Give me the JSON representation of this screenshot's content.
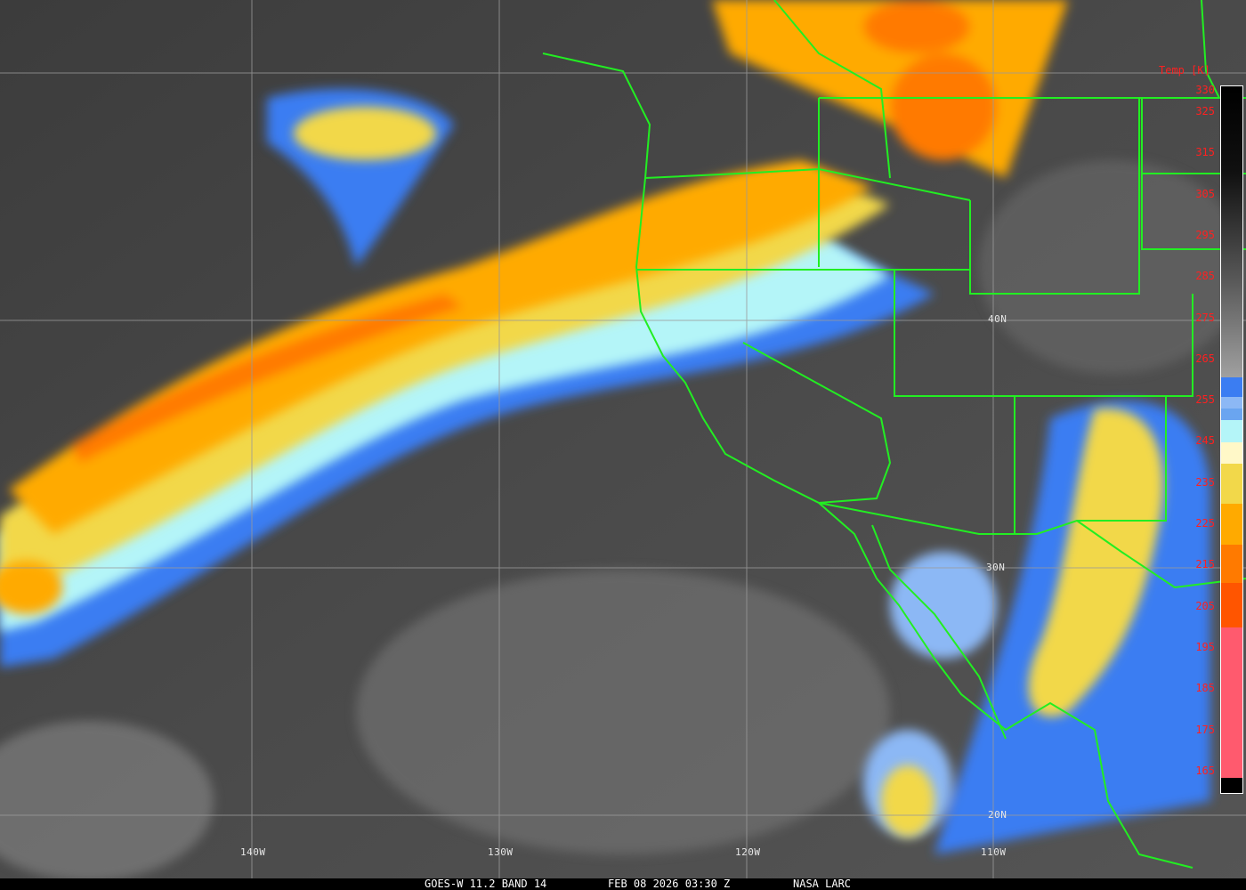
{
  "grid_labels": {
    "lon": [
      "140W",
      "130W",
      "120W",
      "110W"
    ],
    "lat": [
      "40N",
      "30N",
      "20N"
    ]
  },
  "colorbar": {
    "title": "Temp [K]",
    "ticks": [
      "330",
      "325",
      "315",
      "305",
      "295",
      "285",
      "275",
      "265",
      "255",
      "245",
      "235",
      "225",
      "215",
      "205",
      "195",
      "185",
      "175",
      "165"
    ],
    "colors": {
      "warm_gray_top": "#000000",
      "warm_gray_bottom": "#a0a0a0",
      "blue": "#3b7df2",
      "light_blue": "#8cb8f5",
      "mid_blue": "#6aa5f0",
      "cyan": "#b4f5f8",
      "pale_yellow": "#fff8c8",
      "yellow": "#f2d84a",
      "orange": "#ffaa00",
      "dark_orange": "#ff7a00",
      "red_orange": "#ff5500",
      "pink": "#ff5a6e"
    }
  },
  "footer": {
    "satellite": "GOES-W 11.2 BAND 14",
    "datetime": "FEB 08 2026 03:30 Z",
    "credit": "NASA LARC"
  },
  "colors": {
    "borders": "#22ee22",
    "grid": "#9a9a9a",
    "label_red": "#ff2020"
  }
}
